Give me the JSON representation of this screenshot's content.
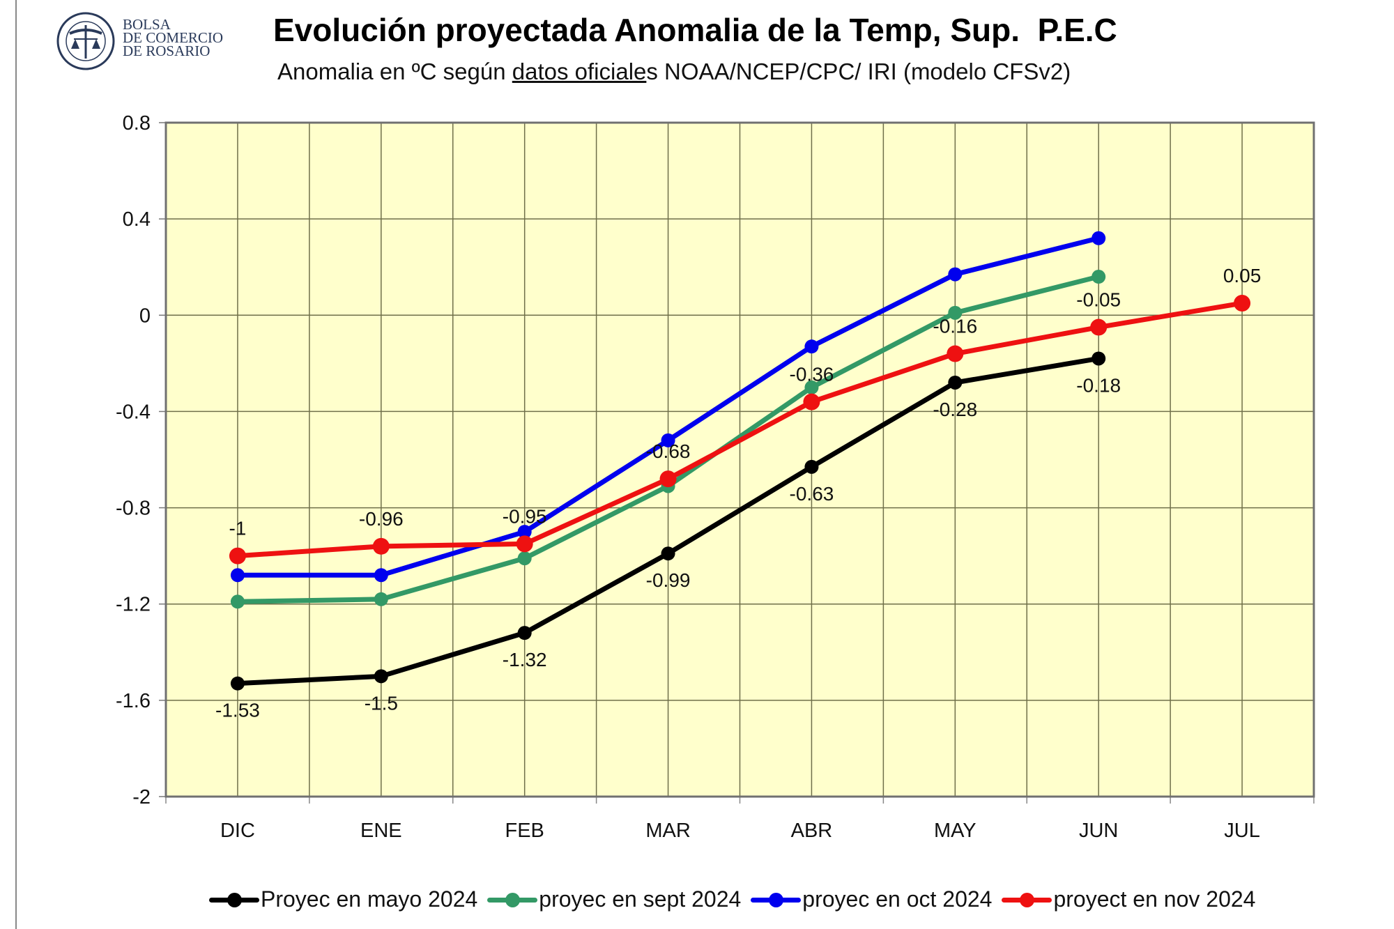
{
  "logo": {
    "line1": "BOLSA",
    "line2": "DE COMERCIO",
    "line3": "DE ROSARIO",
    "seal_text": "BOLSA DE COMERCIO DE ROSARIO"
  },
  "header": {
    "title": "Evolución proyectada Anomalia de la Temp, Sup.  P.E.C",
    "subtitle_pre": "Anomalia en ºC según ",
    "subtitle_underlined": "datos oficiale",
    "subtitle_post": "s NOAA/NCEP/CPC/ IRI (modelo CFSv2)"
  },
  "chart_data": {
    "type": "line",
    "title": "Evolución proyectada Anomalia de la Temp, Sup.  P.E.C",
    "subtitle": "Anomalia en ºC según datos oficiales NOAA/NCEP/CPC/ IRI (modelo CFSv2)",
    "xlabel": "",
    "ylabel": "",
    "categories": [
      "DIC",
      "ENE",
      "FEB",
      "MAR",
      "ABR",
      "MAY",
      "JUN",
      "JUL"
    ],
    "ylim": [
      -2,
      0.8
    ],
    "yticks": [
      0.8,
      0.4,
      0,
      -0.4,
      -0.8,
      -1.2,
      -1.6,
      -2
    ],
    "ytick_labels": [
      "0.8",
      "0.4",
      "0",
      "-0.4",
      "-0.8",
      "-1.2",
      "-1.6",
      "-2"
    ],
    "grid": true,
    "plot_background": "#FFFFCC",
    "legend_position": "bottom",
    "series": [
      {
        "name": "Proyec en mayo 2024",
        "color": "#000000",
        "values": [
          -1.53,
          -1.5,
          -1.32,
          -0.99,
          -0.63,
          -0.28,
          -0.18,
          null
        ],
        "labels": [
          "-1.53",
          "-1.5",
          "-1.32",
          "-0.99",
          "-0.63",
          "-0.28",
          "-0.18",
          null
        ],
        "label_position": "below"
      },
      {
        "name": "proyec en sept 2024",
        "color": "#339966",
        "values": [
          -1.19,
          -1.18,
          -1.01,
          -0.71,
          -0.3,
          0.01,
          0.16,
          null
        ],
        "labels": [
          null,
          null,
          null,
          null,
          null,
          null,
          null,
          null
        ],
        "label_position": "none"
      },
      {
        "name": "proyec en oct 2024",
        "color": "#0000EE",
        "values": [
          -1.08,
          -1.08,
          -0.9,
          -0.52,
          -0.13,
          0.17,
          0.32,
          null
        ],
        "labels": [
          null,
          null,
          null,
          null,
          null,
          null,
          null,
          null
        ],
        "label_position": "none"
      },
      {
        "name": "proyect en nov 2024",
        "color": "#EE1111",
        "values": [
          -1.0,
          -0.96,
          -0.95,
          -0.68,
          -0.36,
          -0.16,
          -0.05,
          0.05
        ],
        "labels": [
          "-1",
          "-0.96",
          "-0.95",
          "-0.68",
          "-0.36",
          "-0.16",
          "-0.05",
          "0.05"
        ],
        "label_position": "above"
      }
    ]
  }
}
